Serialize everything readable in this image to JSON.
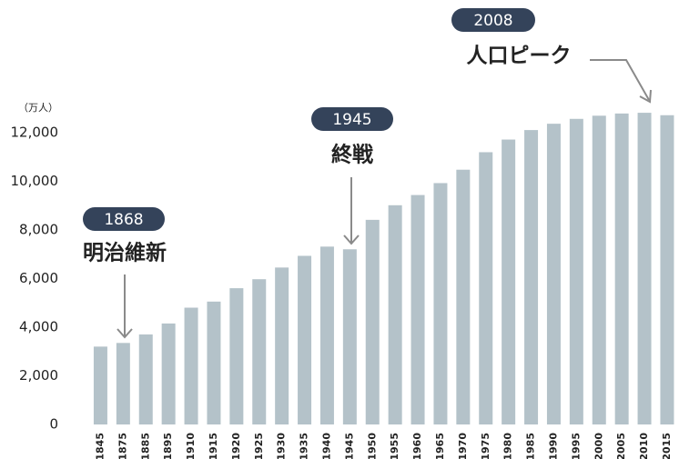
{
  "chart_data": {
    "type": "bar",
    "unit_label": "（万人）",
    "categories": [
      "1845",
      "1875",
      "1885",
      "1895",
      "1910",
      "1915",
      "1920",
      "1925",
      "1930",
      "1935",
      "1940",
      "1945",
      "1950",
      "1955",
      "1960",
      "1965",
      "1970",
      "1975",
      "1980",
      "1985",
      "1990",
      "1995",
      "2000",
      "2005",
      "2010",
      "2015"
    ],
    "values": [
      3200,
      3350,
      3700,
      4150,
      4800,
      5050,
      5600,
      5970,
      6450,
      6930,
      7310,
      7200,
      8410,
      9010,
      9430,
      9920,
      10470,
      11190,
      11710,
      12100,
      12360,
      12560,
      12690,
      12780,
      12810,
      12710
    ],
    "color": "#b4c2c9",
    "ylim": [
      0,
      13000
    ],
    "yticks": [
      0,
      {
        "value": 2000,
        "label": "2,000"
      },
      {
        "value": 4000,
        "label": "4,000"
      },
      {
        "value": 6000,
        "label": "6,000"
      },
      {
        "value": 8000,
        "label": "8,000"
      },
      {
        "value": 10000,
        "label": "10,000"
      },
      {
        "value": 12000,
        "label": "12,000"
      }
    ],
    "annotations": [
      {
        "year": "1868",
        "text": "明治維新"
      },
      {
        "year": "1945",
        "text": "終戦"
      },
      {
        "year": "2008",
        "text": "人口ピーク"
      }
    ]
  }
}
